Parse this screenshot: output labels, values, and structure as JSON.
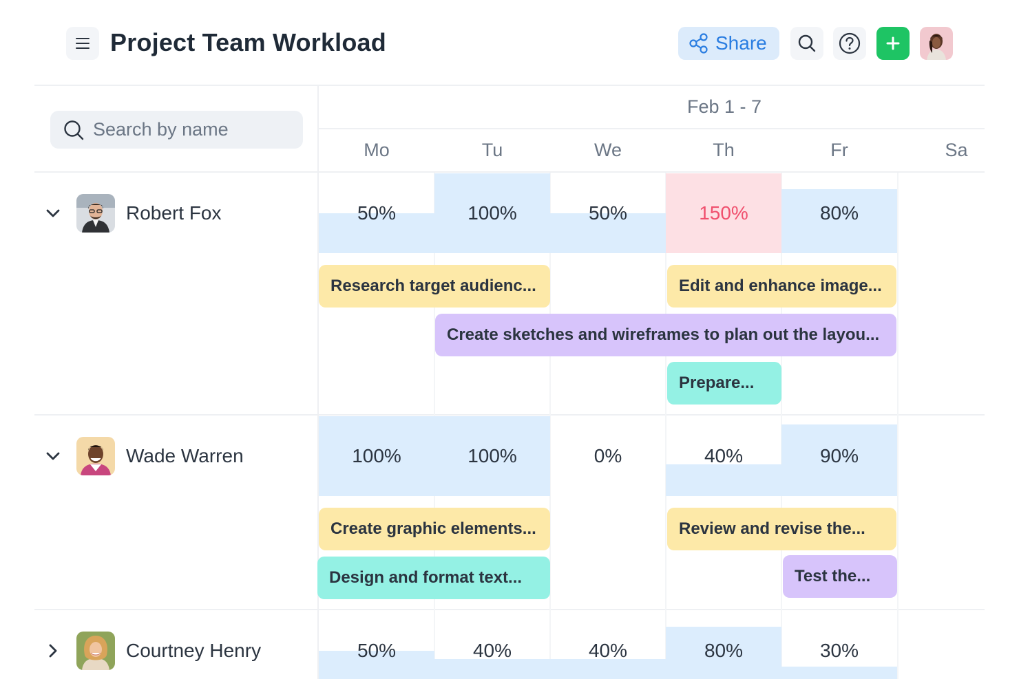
{
  "header": {
    "title": "Project Team Workload",
    "share_label": "Share"
  },
  "search": {
    "placeholder": "Search by name"
  },
  "calendar": {
    "range": "Feb 1 - 7",
    "days": [
      "Mo",
      "Tu",
      "We",
      "Th",
      "Fr",
      "Sa"
    ]
  },
  "people": [
    {
      "name": "Robert Fox",
      "expanded": true,
      "loads": [
        {
          "label": "50%",
          "value": 50
        },
        {
          "label": "100%",
          "value": 100
        },
        {
          "label": "50%",
          "value": 50
        },
        {
          "label": "150%",
          "value": 150
        },
        {
          "label": "80%",
          "value": 80
        }
      ],
      "tasks": [
        {
          "title": "Research target audienc...",
          "color": "yellow"
        },
        {
          "title": "Edit and enhance image...",
          "color": "yellow"
        },
        {
          "title": "Create sketches and wireframes to plan out the layou...",
          "color": "purple"
        },
        {
          "title": "Prepare...",
          "color": "teal"
        }
      ]
    },
    {
      "name": "Wade Warren",
      "expanded": true,
      "loads": [
        {
          "label": "100%",
          "value": 100
        },
        {
          "label": "100%",
          "value": 100
        },
        {
          "label": "0%",
          "value": 0
        },
        {
          "label": "40%",
          "value": 40
        },
        {
          "label": "90%",
          "value": 90
        }
      ],
      "tasks": [
        {
          "title": "Create graphic elements...",
          "color": "yellow"
        },
        {
          "title": "Review and revise the...",
          "color": "yellow"
        },
        {
          "title": "Design and format text...",
          "color": "teal"
        },
        {
          "title": "Test the...",
          "color": "purple"
        }
      ]
    },
    {
      "name": "Courtney Henry",
      "expanded": false,
      "loads": [
        {
          "label": "50%",
          "value": 50
        },
        {
          "label": "40%",
          "value": 40
        },
        {
          "label": "40%",
          "value": 40
        },
        {
          "label": "80%",
          "value": 80
        },
        {
          "label": "30%",
          "value": 30
        }
      ]
    }
  ],
  "colors": {
    "accent": "#2a7de1",
    "add_button": "#1ec464",
    "load_fill": "#dcedfd",
    "overload_fill": "#fde0e4",
    "overload_text": "#f0506e",
    "task_yellow": "#fde9a8",
    "task_purple": "#d7c4fb",
    "task_teal": "#94f1e4"
  },
  "icons": {
    "menu": "menu-icon",
    "share": "share-icon",
    "search": "search-icon",
    "help": "help-icon",
    "add": "plus-icon",
    "expand": "chevron-down-icon",
    "collapse": "chevron-right-icon"
  }
}
